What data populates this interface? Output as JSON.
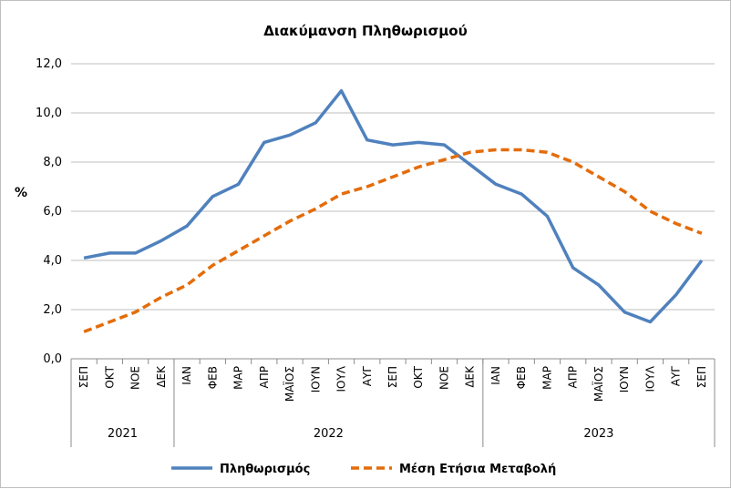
{
  "chart_data": {
    "type": "line",
    "title": "Διακύμανση Πληθωρισμού",
    "ylabel": "%",
    "xlabel": "",
    "ylim": [
      0,
      12
    ],
    "yticks": [
      "0,0",
      "2,0",
      "4,0",
      "6,0",
      "8,0",
      "10,0",
      "12,0"
    ],
    "grid": "horizontal",
    "legend_position": "bottom",
    "categories": [
      "ΣΕΠ",
      "ΟΚΤ",
      "ΝΟΕ",
      "ΔΕΚ",
      "ΙΑΝ",
      "ΦΕΒ",
      "ΜΑΡ",
      "ΑΠΡ",
      "ΜΑΪΟΣ",
      "ΙΟΥΝ",
      "ΙΟΥΛ",
      "ΑΥΓ",
      "ΣΕΠ",
      "ΟΚΤ",
      "ΝΟΕ",
      "ΔΕΚ",
      "ΙΑΝ",
      "ΦΕΒ",
      "ΜΑΡ",
      "ΑΠΡ",
      "ΜΑΪΟΣ",
      "ΙΟΥΝ",
      "ΙΟΥΛ",
      "ΑΥΓ",
      "ΣΕΠ"
    ],
    "years": [
      {
        "label": "2021",
        "start": 0,
        "count": 4
      },
      {
        "label": "2022",
        "start": 4,
        "count": 12
      },
      {
        "label": "2023",
        "start": 16,
        "count": 9
      }
    ],
    "series": [
      {
        "name": "Πληθωρισμός",
        "color": "#4f81bd",
        "style": "solid",
        "values": [
          4.1,
          4.3,
          4.3,
          4.8,
          5.4,
          6.6,
          7.1,
          8.8,
          9.1,
          9.6,
          10.9,
          8.9,
          8.7,
          8.8,
          8.7,
          7.9,
          7.1,
          6.7,
          5.8,
          3.7,
          3.0,
          1.9,
          1.5,
          2.6,
          4.0
        ]
      },
      {
        "name": "Μέση Ετήσια Μεταβολή",
        "color": "#e46c0a",
        "style": "dashed",
        "values": [
          1.1,
          1.5,
          1.9,
          2.5,
          3.0,
          3.8,
          4.4,
          5.0,
          5.6,
          6.1,
          6.7,
          7.0,
          7.4,
          7.8,
          8.1,
          8.4,
          8.5,
          8.5,
          8.4,
          8.0,
          7.4,
          6.8,
          6.0,
          5.5,
          5.1
        ]
      }
    ]
  }
}
